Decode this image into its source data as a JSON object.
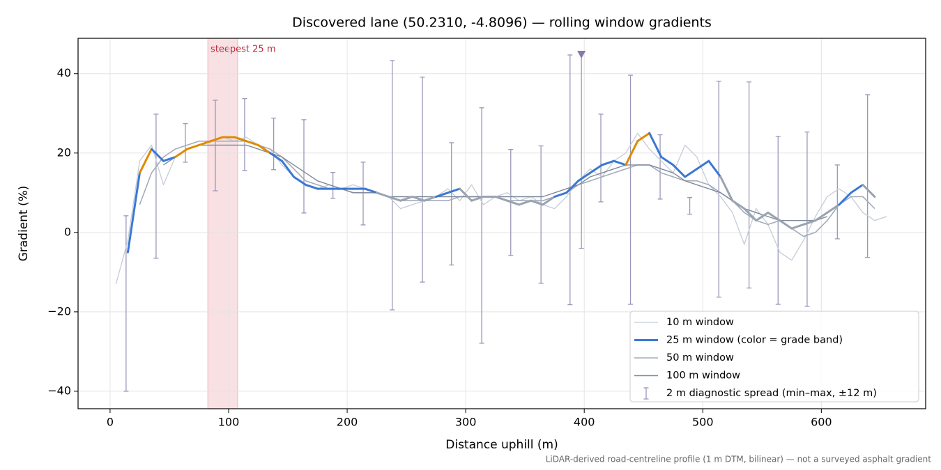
{
  "chart_data": {
    "type": "line",
    "title": "Discovered lane (50.2310, -4.8096) — rolling window gradients",
    "x_label": "Distance uphill (m)",
    "y_label": "Gradient (%)",
    "footnote": "LiDAR-derived road-centreline profile (1 m DTM, bilinear) — not a surveyed asphalt gradient",
    "xlim": [
      -27,
      688
    ],
    "ylim": [
      -44.4,
      48.9
    ],
    "xticks": [
      0,
      100,
      200,
      300,
      400,
      500,
      600
    ],
    "yticks": [
      {
        "value": -40,
        "label": "−40"
      },
      {
        "value": -20,
        "label": "−20"
      },
      0,
      20,
      40
    ],
    "grid": true,
    "legend": "lower right",
    "x": [
      5,
      15,
      25,
      35,
      45,
      55,
      65,
      75,
      85,
      95,
      105,
      115,
      125,
      135,
      145,
      155,
      165,
      175,
      185,
      195,
      205,
      215,
      225,
      235,
      245,
      255,
      265,
      275,
      285,
      295,
      305,
      315,
      325,
      335,
      345,
      355,
      365,
      375,
      385,
      395,
      405,
      415,
      425,
      435,
      445,
      455,
      465,
      475,
      485,
      495,
      505,
      515,
      525,
      535,
      545,
      555,
      565,
      575,
      585,
      595,
      605,
      615,
      625,
      635,
      645,
      655
    ],
    "series": [
      {
        "name": "10 m window",
        "color": "#c5ccd6",
        "values": [
          -13,
          -2,
          18,
          22,
          12,
          19,
          21,
          22,
          23,
          24,
          23,
          24,
          22,
          21,
          17,
          14,
          12,
          11,
          12,
          11,
          12,
          11,
          10,
          9,
          6,
          7,
          8,
          9,
          11,
          8,
          12,
          7,
          9,
          10,
          8,
          9,
          7,
          6,
          9,
          13,
          16,
          14,
          18,
          20,
          25,
          21,
          18,
          15,
          22,
          19,
          12,
          9,
          5,
          -3,
          6,
          2,
          -5,
          -7,
          -2,
          4,
          9,
          11,
          9,
          5,
          3,
          4
        ]
      },
      {
        "name": "25 m window (color = grade band)",
        "color": "#3a78d4",
        "values": [
          null,
          -5,
          15,
          21,
          18,
          19,
          21,
          22,
          23,
          24,
          24,
          23,
          22,
          20,
          18,
          14,
          12,
          11,
          11,
          11,
          11,
          11,
          10,
          9,
          8,
          9,
          8,
          9,
          10,
          11,
          8,
          9,
          9,
          8,
          7,
          8,
          7,
          9,
          10,
          13,
          15,
          17,
          18,
          17,
          23,
          25,
          19,
          17,
          14,
          16,
          18,
          14,
          8,
          6,
          3,
          5,
          3,
          1,
          2,
          3,
          5,
          7,
          10,
          12,
          9,
          null
        ],
        "point_colors": [
          null,
          "#9aa3b0",
          "#3a78d4",
          "#e08a00",
          "#3a78d4",
          "#3a78d4",
          "#e08a00",
          "#e08a00",
          "#e08a00",
          "#e08a00",
          "#e08a00",
          "#e08a00",
          "#e08a00",
          "#e08a00",
          "#3a78d4",
          "#3a78d4",
          "#3a78d4",
          "#3a78d4",
          "#3a78d4",
          "#3a78d4",
          "#3a78d4",
          "#3a78d4",
          "#3a78d4",
          "#9aa3b0",
          "#9aa3b0",
          "#9aa3b0",
          "#9aa3b0",
          "#9aa3b0",
          "#3a78d4",
          "#3a78d4",
          "#9aa3b0",
          "#9aa3b0",
          "#9aa3b0",
          "#9aa3b0",
          "#9aa3b0",
          "#9aa3b0",
          "#9aa3b0",
          "#9aa3b0",
          "#3a78d4",
          "#3a78d4",
          "#3a78d4",
          "#3a78d4",
          "#3a78d4",
          "#3a78d4",
          "#e08a00",
          "#e08a00",
          "#3a78d4",
          "#3a78d4",
          "#3a78d4",
          "#3a78d4",
          "#3a78d4",
          "#3a78d4",
          "#9aa3b0",
          "#9aa3b0",
          "#9aa3b0",
          "#9aa3b0",
          "#9aa3b0",
          "#9aa3b0",
          "#9aa3b0",
          "#9aa3b0",
          "#9aa3b0",
          "#9aa3b0",
          "#3a78d4",
          "#3a78d4",
          "#9aa3b0",
          null
        ]
      },
      {
        "name": "50 m window",
        "color": "#a3abba",
        "values": [
          null,
          null,
          7,
          15,
          19,
          21,
          22,
          23,
          23,
          23,
          23,
          23,
          22,
          21,
          19,
          16,
          13,
          12,
          11,
          11,
          10,
          10,
          10,
          9,
          8,
          8,
          8,
          8,
          8,
          9,
          9,
          9,
          9,
          8,
          8,
          8,
          8,
          9,
          10,
          12,
          13,
          14,
          15,
          16,
          17,
          17,
          15,
          14,
          13,
          13,
          12,
          10,
          8,
          5,
          3,
          2,
          3,
          1,
          -1,
          0,
          3,
          7,
          9,
          9,
          6,
          null
        ]
      },
      {
        "name": "100 m window",
        "color": "#7f899b",
        "values": [
          null,
          null,
          null,
          null,
          17,
          19,
          21,
          22,
          22,
          22,
          22,
          22,
          21,
          20,
          19,
          17,
          15,
          13,
          12,
          11,
          10,
          10,
          10,
          9,
          9,
          9,
          9,
          9,
          9,
          9,
          9,
          9,
          9,
          9,
          9,
          9,
          9,
          10,
          11,
          12,
          14,
          15,
          16,
          17,
          17,
          17,
          16,
          15,
          13,
          12,
          11,
          10,
          8,
          6,
          5,
          4,
          3,
          3,
          3,
          3,
          4,
          null,
          null,
          null,
          null,
          null
        ]
      }
    ],
    "error_bars": {
      "name": "2 m diagnostic spread (min–max, ±12 m)",
      "color": "#9a97b8",
      "x": [
        13.5,
        38.8,
        63.5,
        88.8,
        113.5,
        138,
        163.5,
        188,
        213.5,
        238,
        263.5,
        288,
        313.5,
        338,
        363.5,
        388,
        397.6,
        414,
        439,
        464,
        489,
        513.5,
        539,
        563.5,
        588,
        613.5,
        639
      ],
      "low": [
        -40,
        -6.5,
        17.7,
        10.5,
        15.6,
        15.8,
        4.9,
        8.6,
        1.9,
        -19.5,
        -12.5,
        -8.2,
        -27.9,
        -5.8,
        -12.8,
        -18.2,
        -4,
        7.7,
        -18.1,
        8.4,
        4.6,
        -16.3,
        -14,
        -18.1,
        -18.6,
        -1.6,
        -6.3
      ],
      "high": [
        4.2,
        29.8,
        27.4,
        33.3,
        33.7,
        28.8,
        28.4,
        15.1,
        17.7,
        43.3,
        39.1,
        22.6,
        31.4,
        20.9,
        21.8,
        44.7,
        45.6,
        29.8,
        39.6,
        24.6,
        8.8,
        38.1,
        37.9,
        24.2,
        25.3,
        17,
        34.7
      ]
    },
    "marker": {
      "x": 397.6,
      "y": 44.7,
      "color": "#8877aa"
    },
    "shaded_span": {
      "from": 82.4,
      "to": 107.6,
      "label": "steepest 25 m",
      "color": "#e8a0a8",
      "label_color": "#c0283a"
    }
  }
}
